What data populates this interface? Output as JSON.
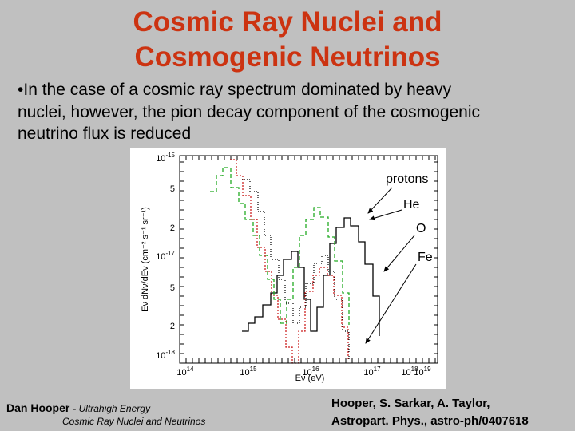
{
  "title": [
    "Cosmic Ray Nuclei and",
    "Cosmogenic Neutrinos"
  ],
  "bullet": {
    "marker": "•",
    "lines": [
      "In the case of a cosmic ray spectrum dominated by heavy",
      "nuclei, however, the pion decay component of the cosmogenic",
      "neutrino flux is reduced"
    ]
  },
  "figure": {
    "y_axis_title": "Eν dNν/dEν (cm⁻² s⁻¹ sr⁻¹)",
    "x_axis_title": "Eν (eV)",
    "y_ticks": [
      {
        "base": "10",
        "exp": "-15"
      },
      "5",
      "2",
      {
        "base": "10",
        "exp": "-17"
      },
      "5",
      "2",
      {
        "base": "10",
        "exp": "-18"
      }
    ],
    "x_ticks": [
      {
        "base": "10",
        "exp": "14"
      },
      {
        "base": "10",
        "exp": "15"
      },
      {
        "base": "10",
        "exp": "16"
      },
      {
        "base": "10",
        "exp": "17"
      },
      {
        "base": "10",
        "exp": "18"
      },
      {
        "base": "10",
        "exp": "19"
      }
    ],
    "labels": [
      "protons",
      "He",
      "O",
      "Fe"
    ]
  },
  "footer": {
    "left": {
      "author": "Dan Hooper",
      "topic": "- Ultrahigh Energy",
      "topic2": "Cosmic Ray Nuclei and Neutrinos"
    },
    "right": [
      "Hooper, S. Sarkar, A. Taylor,",
      "Astropart. Phys., astro-ph/0407618"
    ]
  }
}
